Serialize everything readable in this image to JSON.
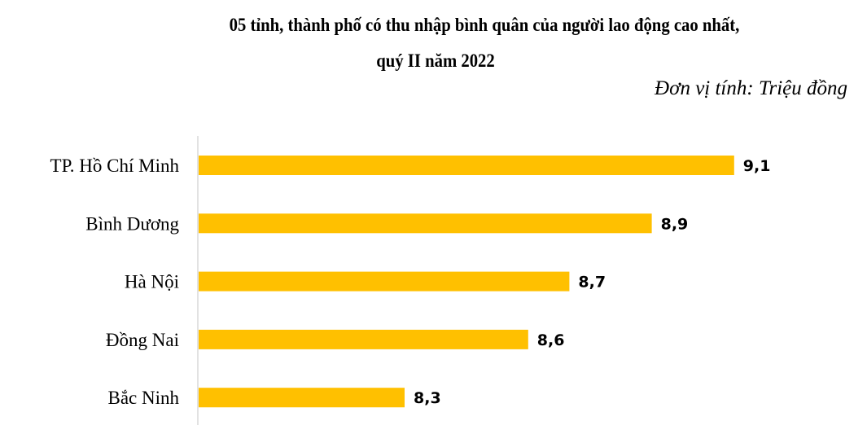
{
  "chart_data": {
    "type": "bar",
    "orientation": "horizontal",
    "title": "05 tỉnh, thành phố có thu nhập bình quân của người lao động cao nhất,",
    "subtitle": "quý II năm 2022",
    "unit_note": "Đơn vị tính: Triệu đồng",
    "categories": [
      "TP. Hồ Chí Minh",
      "Bình Dương",
      "Hà Nội",
      "Đồng Nai",
      "Bắc Ninh"
    ],
    "values": [
      9.1,
      8.9,
      8.7,
      8.6,
      8.3
    ],
    "data_labels": [
      "9,1",
      "8,9",
      "8,7",
      "8,6",
      "8,3"
    ],
    "xlim": [
      7.8,
      9.3
    ],
    "grid": false,
    "legend": "none",
    "colors": {
      "bar": "#FFC000",
      "axis": "#D9D9D9"
    }
  }
}
